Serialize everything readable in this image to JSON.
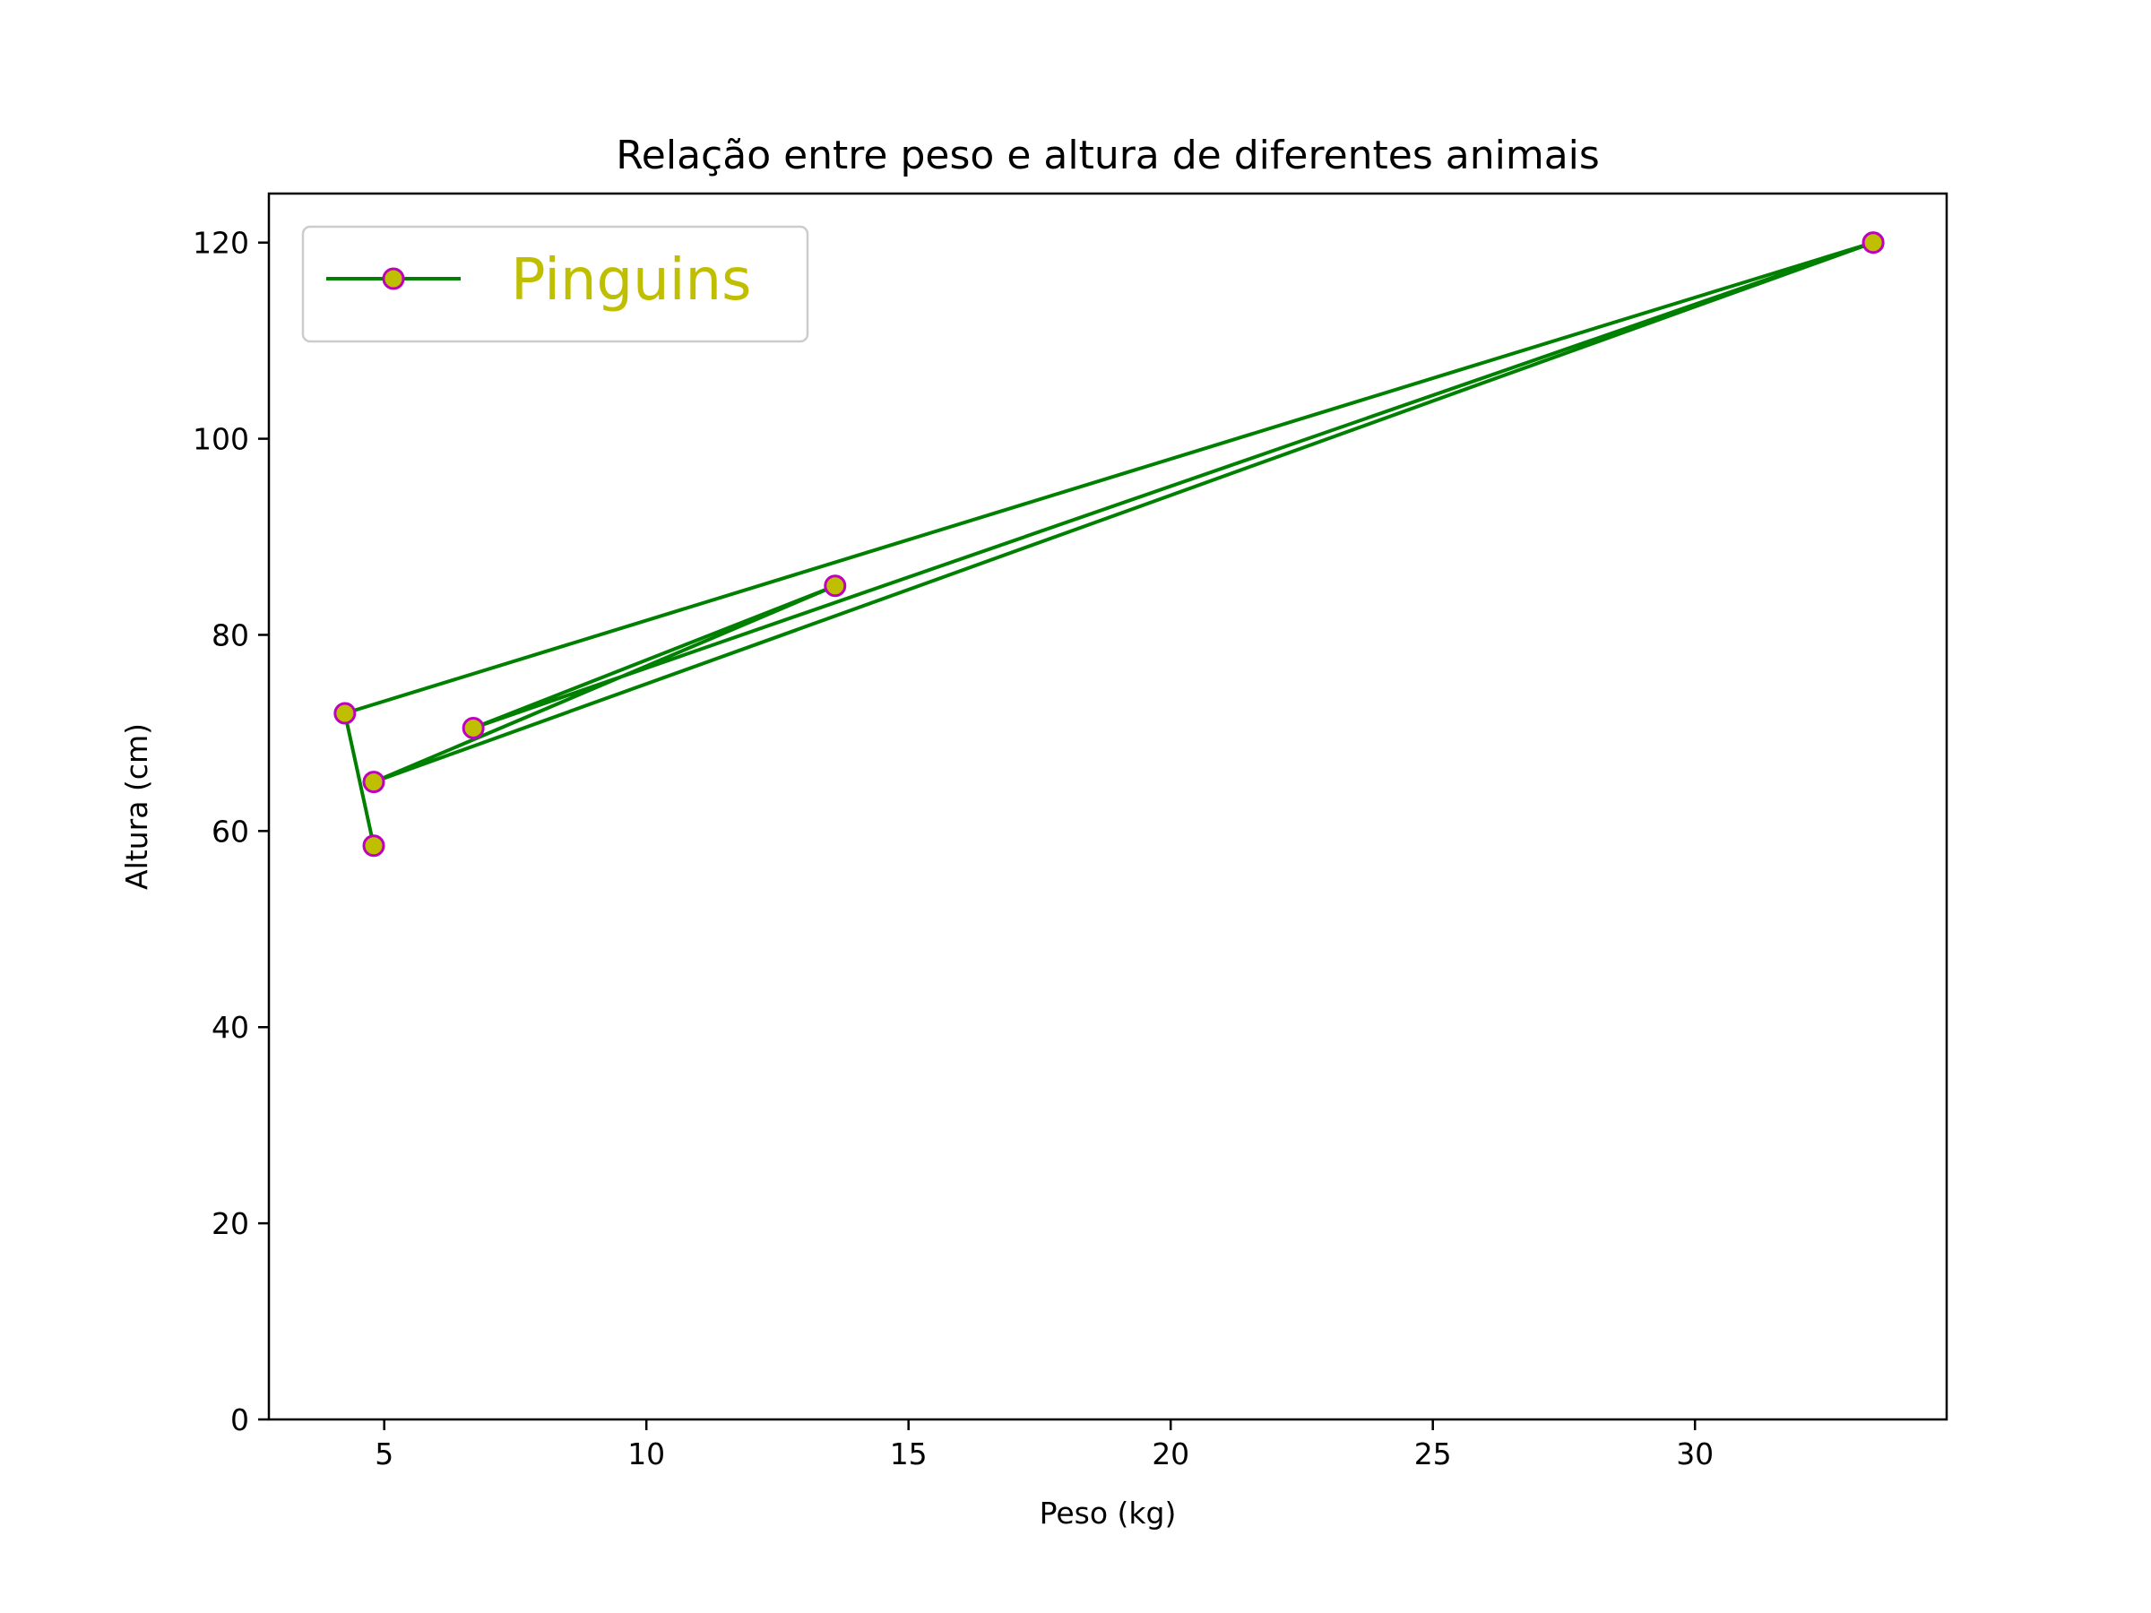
{
  "chart_data": {
    "type": "line",
    "title": "Relação entre peso e altura de diferentes animais",
    "xlabel": "Peso (kg)",
    "ylabel": "Altura (cm)",
    "xlim": [
      2.8,
      34.8
    ],
    "ylim": [
      0,
      125
    ],
    "x_ticks": [
      5,
      10,
      15,
      20,
      25,
      30
    ],
    "x_tick_labels": [
      "5",
      "10",
      "15",
      "20",
      "25",
      "30"
    ],
    "y_ticks": [
      0,
      20,
      40,
      60,
      80,
      100,
      120
    ],
    "y_tick_labels": [
      "0",
      "20",
      "40",
      "60",
      "80",
      "100",
      "120"
    ],
    "grid": false,
    "legend": {
      "placement": "top-left"
    },
    "series": [
      {
        "name": "Pinguins",
        "x": [
          4.8,
          4.25,
          33.4,
          6.7,
          13.6,
          4.8,
          33.4
        ],
        "y": [
          58.5,
          72,
          120,
          70.5,
          85,
          65,
          120
        ],
        "line_color": "#008000",
        "marker_face_color": "#bfbf00",
        "marker_edge_color": "#bf00bf",
        "legend_text_color": "#bfbf00"
      }
    ]
  }
}
